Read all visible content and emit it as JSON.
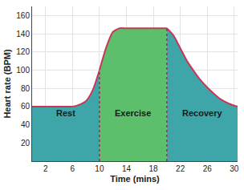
{
  "chart_data": {
    "type": "area",
    "x_label": "Time (mins)",
    "y_label": "Heart rate (BPM)",
    "series": [
      {
        "name": "Rest",
        "color": "#3ea6a8",
        "x": [
          0,
          2,
          4,
          6,
          7,
          8,
          9,
          10
        ],
        "values": [
          60,
          60,
          60,
          60,
          62,
          66,
          78,
          100
        ]
      },
      {
        "name": "Exercise",
        "color": "#5dbf6c",
        "x": [
          10,
          11,
          12,
          13,
          14,
          16,
          18,
          20
        ],
        "values": [
          100,
          125,
          142,
          146,
          146,
          146,
          146,
          146
        ]
      },
      {
        "name": "Recovery",
        "color": "#3ea6a8",
        "x": [
          20,
          21,
          22,
          23,
          24,
          25,
          26,
          27,
          28,
          29,
          30,
          30.5
        ],
        "values": [
          146,
          138,
          124,
          110,
          99,
          89,
          81,
          74,
          68,
          64,
          61,
          60
        ]
      }
    ],
    "xlim": [
      0,
      30.5
    ],
    "xticks": [
      2,
      6,
      10,
      14,
      18,
      22,
      26,
      30
    ],
    "ylim": [
      0,
      170
    ],
    "yticks": [
      20,
      40,
      60,
      80,
      100,
      120,
      140,
      160
    ],
    "grid": true
  }
}
